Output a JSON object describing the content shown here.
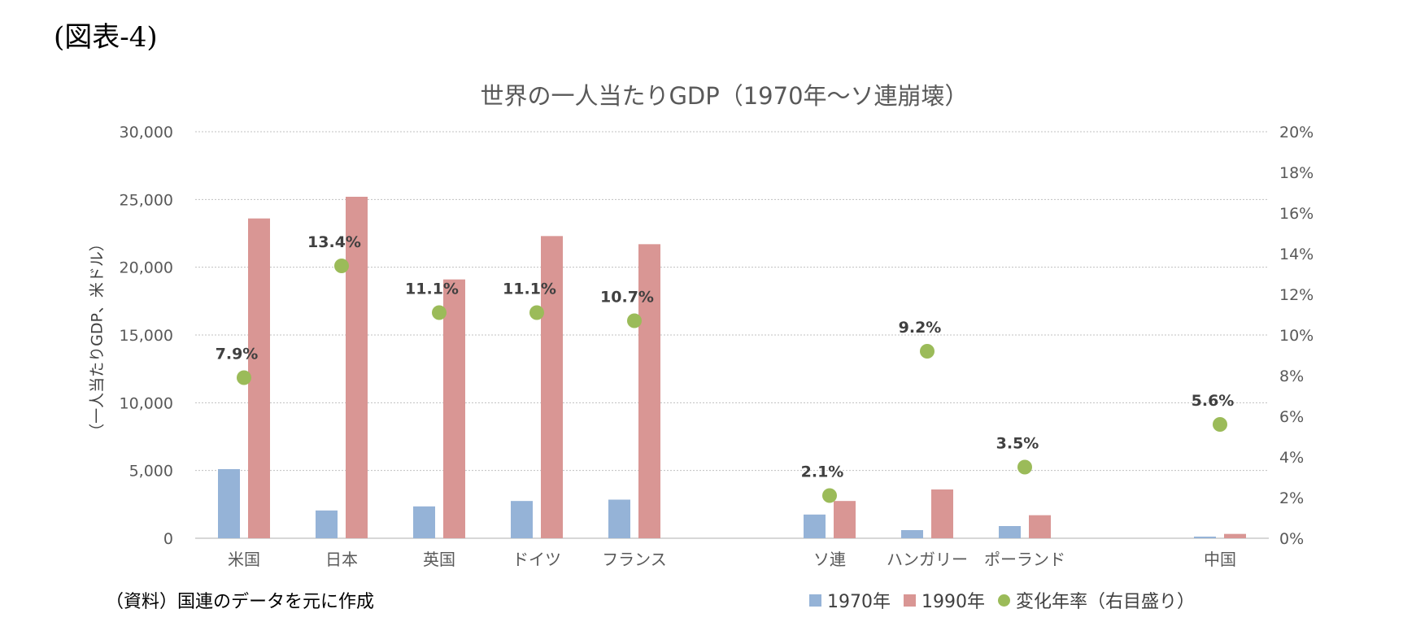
{
  "figure_label": "(図表-4)",
  "source_note": "（資料）国連のデータを元に作成",
  "colors": {
    "s1970": "#95b3d7",
    "s1990": "#d99694",
    "rate": "#9bbb59",
    "grid": "#c0c0c0",
    "axis_text": "#595959"
  },
  "chart_data": {
    "type": "bar",
    "title": "世界の一人当たりGDP（1970年～ソ連崩壊）",
    "ylabel": "（一人当たりGDP、米ドル）",
    "xlabel": "",
    "ylim": [
      0,
      30000
    ],
    "y2lim": [
      0,
      0.2
    ],
    "y_ticks": [
      "0",
      "5,000",
      "10,000",
      "15,000",
      "20,000",
      "25,000",
      "30,000"
    ],
    "y2_ticks": [
      "0%",
      "2%",
      "4%",
      "6%",
      "8%",
      "10%",
      "12%",
      "14%",
      "16%",
      "18%",
      "20%"
    ],
    "grid": true,
    "legend_position": "bottom-right",
    "categories": [
      "米国",
      "日本",
      "英国",
      "ドイツ",
      "フランス",
      "",
      "ソ連",
      "ハンガリー",
      "ポーランド",
      "",
      "中国"
    ],
    "series": [
      {
        "name": "1970年",
        "type": "bar",
        "axis": "left",
        "values": [
          5100,
          2050,
          2350,
          2750,
          2850,
          null,
          1750,
          600,
          900,
          null,
          120
        ]
      },
      {
        "name": "1990年",
        "type": "bar",
        "axis": "left",
        "values": [
          23600,
          25200,
          19100,
          22300,
          21700,
          null,
          2750,
          3600,
          1700,
          null,
          320
        ]
      },
      {
        "name": "変化年率（右目盛り）",
        "type": "scatter",
        "axis": "right",
        "values": [
          0.079,
          0.134,
          0.111,
          0.111,
          0.107,
          null,
          0.021,
          0.092,
          0.035,
          null,
          0.056
        ],
        "labels": [
          "7.9%",
          "13.4%",
          "11.1%",
          "11.1%",
          "10.7%",
          "",
          "2.1%",
          "9.2%",
          "3.5%",
          "",
          "5.6%"
        ]
      }
    ]
  }
}
